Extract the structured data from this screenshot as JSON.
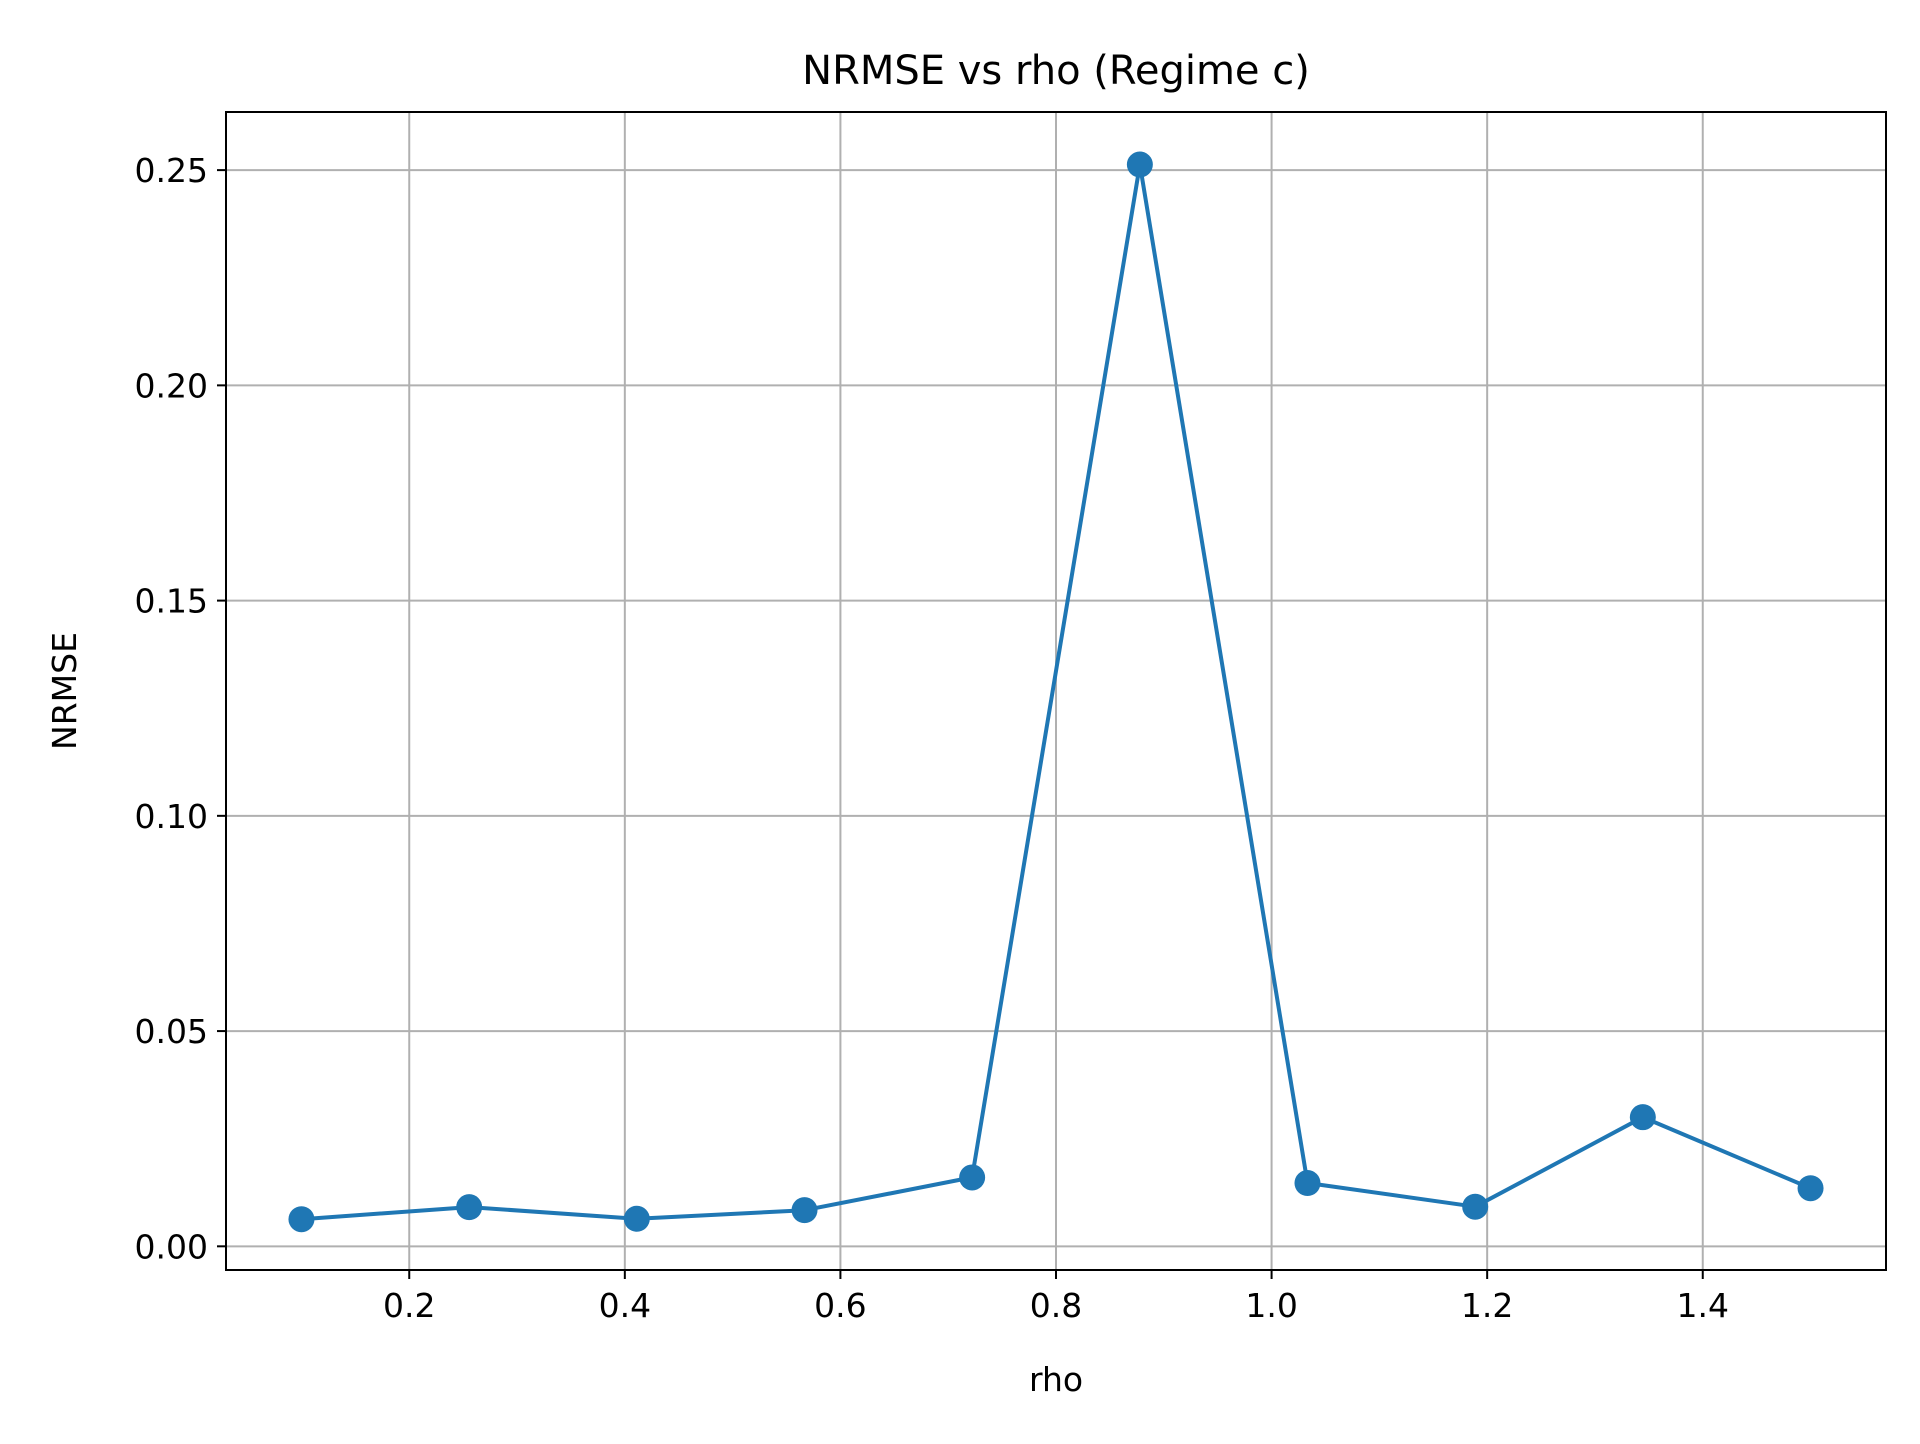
{
  "chart_data": {
    "type": "line",
    "title": "NRMSE vs rho (Regime c)",
    "xlabel": "rho",
    "ylabel": "NRMSE",
    "xlim": [
      0.03,
      1.57
    ],
    "ylim": [
      -0.0055,
      0.2635
    ],
    "xticks": [
      0.2,
      0.4,
      0.6,
      0.8,
      1.0,
      1.2,
      1.4
    ],
    "xtick_labels": [
      "0.2",
      "0.4",
      "0.6",
      "0.8",
      "1.0",
      "1.2",
      "1.4"
    ],
    "yticks": [
      0.0,
      0.05,
      0.1,
      0.15,
      0.2,
      0.25
    ],
    "ytick_labels": [
      "0.00",
      "0.05",
      "0.10",
      "0.15",
      "0.20",
      "0.25"
    ],
    "grid": true,
    "series": [
      {
        "color": "#1f77b4",
        "marker": "circle",
        "x": [
          0.1,
          0.2556,
          0.4111,
          0.5667,
          0.7222,
          0.8778,
          1.0333,
          1.1889,
          1.3444,
          1.5
        ],
        "y": [
          0.0063,
          0.0091,
          0.0064,
          0.0084,
          0.016,
          0.2513,
          0.0147,
          0.0092,
          0.03,
          0.0135
        ]
      }
    ]
  }
}
